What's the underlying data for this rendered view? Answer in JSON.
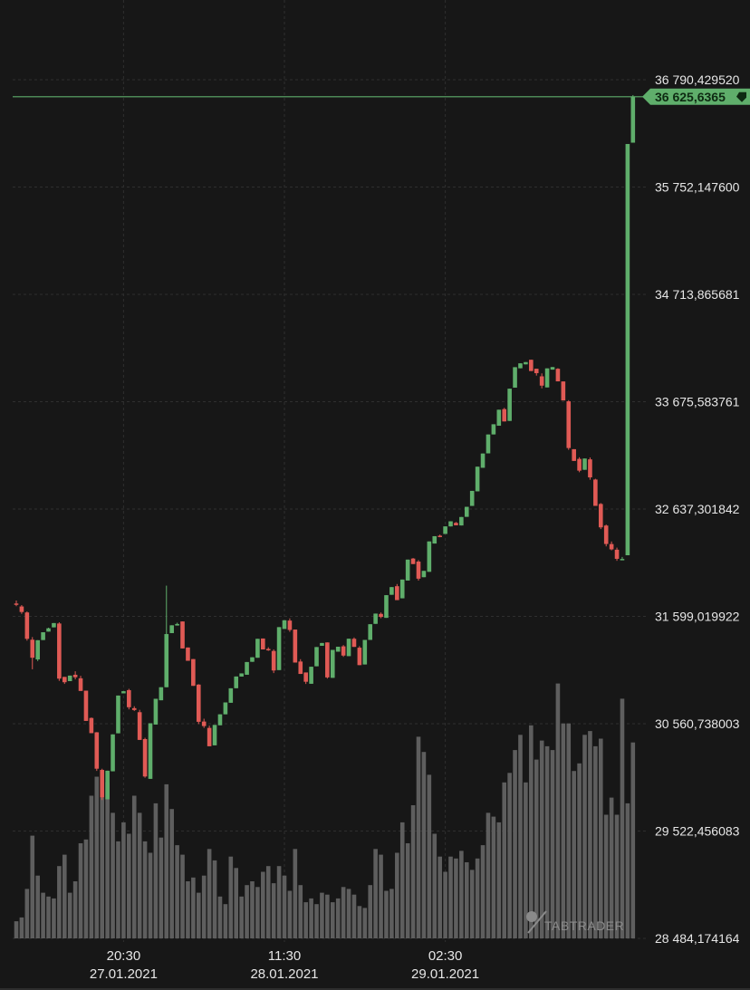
{
  "watermark": "TABTRADER",
  "current_price_label": "36 625,6365",
  "colors": {
    "up": "#5fae6b",
    "down": "#e05a55",
    "volume": "#5e5e5e",
    "price_line": "#5fae6b",
    "background": "#171717"
  },
  "chart_data": {
    "type": "candlestick",
    "title": "",
    "price_axis_ticks": [
      "36 790,429520",
      "35 752,147600",
      "34 713,865681",
      "33 675,583761",
      "32 637,301842",
      "31 599,019922",
      "30 560,738003",
      "29 522,456083",
      "28 484,174164"
    ],
    "price_axis_values": [
      36790.42952,
      35752.1476,
      34713.865681,
      33675.583761,
      32637.301842,
      31599.019922,
      30560.738003,
      29522.456083,
      28484.174164
    ],
    "time_axis": [
      {
        "time": "20:30",
        "date": "27.01.2021",
        "index": 20
      },
      {
        "time": "11:30",
        "date": "28.01.2021",
        "index": 50
      },
      {
        "time": "02:30",
        "date": "29.01.2021",
        "index": 80
      }
    ],
    "ylim": [
      28484.174164,
      36790.42952
    ],
    "current_price": 36625.6365,
    "ohlc": [
      [
        31723.6,
        31721.6,
        31697.1,
        31752.5
      ],
      [
        31694.9,
        31641.3,
        31623.6,
        31708.4
      ],
      [
        31636.9,
        31381.9,
        31364.2,
        31646.9
      ],
      [
        31373.2,
        31198.8,
        31087.3,
        31398.7
      ],
      [
        31182.6,
        31368.6,
        31166.1,
        31363.3
      ],
      [
        31370.0,
        31445.4,
        31457.9,
        31350.6
      ],
      [
        31451.6,
        31483.4,
        31460.2,
        31489.5
      ],
      [
        31492.7,
        31534.3,
        31546.8,
        31514.6
      ],
      [
        31530.2,
        30996.8,
        30975.1,
        31542.2
      ],
      [
        31013.5,
        30962.0,
        30945.7,
        30998.6
      ],
      [
        30972.7,
        31026.2,
        31063.3,
        30987.5
      ],
      [
        31034.3,
        31010.1,
        30989.6,
        31067.8
      ],
      [
        31000.0,
        30877.7,
        30890.6,
        31024.2
      ],
      [
        30880.4,
        30587.8,
        30609.8,
        30874.9
      ],
      [
        30616.2,
        30469.4,
        30479.6,
        30620.8
      ],
      [
        30477.6,
        30125.4,
        30104.2,
        30479.6
      ],
      [
        30113.7,
        29847.2,
        29822.5,
        30125.0
      ],
      [
        29829.4,
        30106.1,
        30125.8,
        29811.7
      ],
      [
        30100.3,
        30457.5,
        30467.6,
        30124.7
      ],
      [
        30467.9,
        30833.1,
        30848.4,
        30481.5
      ],
      [
        30854.3,
        30875.3,
        30892.5,
        30841.1
      ],
      [
        30885.6,
        30720.1,
        30699.2,
        30898.2
      ],
      [
        30710.9,
        30693.5,
        30684.3,
        30729.5
      ],
      [
        30672.2,
        30404.0,
        30426.9,
        30695.0
      ],
      [
        30411.9,
        30050.1,
        30038.2,
        30424.8
      ],
      [
        30027.3,
        30565.1,
        30545.6,
        30035.9
      ],
      [
        30552.4,
        30801.8,
        30781.4,
        30579.3
      ],
      [
        30787.4,
        30913.6,
        30934.0,
        30793.1
      ],
      [
        30913.6,
        31427.8,
        31453.9,
        31896.4
      ],
      [
        31437.1,
        31512.8,
        31497.4,
        31422.1
      ],
      [
        31510.6,
        31525.6,
        31553.9,
        31537.7
      ],
      [
        31549.8,
        31288.7,
        31312.0,
        31533.4
      ],
      [
        31298.0,
        31169.4,
        31184.6,
        31283.5
      ],
      [
        31186.0,
        30926.9,
        30932.8,
        31154.3
      ],
      [
        30939.2,
        30579.2,
        30557.1,
        30942.9
      ],
      [
        30581.5,
        30538.1,
        30520.1,
        30608.9
      ],
      [
        30520.2,
        30342.6,
        30360.7,
        30542.2
      ],
      [
        30351.5,
        30549.1,
        30528.3,
        30359.1
      ],
      [
        30545.6,
        30651.6,
        30664.1,
        30563.7
      ],
      [
        30651.6,
        30766.6,
        30746.4,
        30664.7
      ],
      [
        30763.2,
        30903.4,
        30924.1,
        30773.7
      ],
      [
        30904.0,
        31017.5,
        31036.5,
        30923.1
      ],
      [
        31016.7,
        31047.4,
        31028.9,
        31036.1
      ],
      [
        31034.3,
        31157.4,
        31142.6,
        31052.0
      ],
      [
        31159.4,
        31203.4,
        31191.6,
        31169.5
      ],
      [
        31198.7,
        31382.0,
        31361.3,
        31210.7
      ],
      [
        31385.0,
        31279.3,
        31298.4,
        31373.9
      ],
      [
        31283.9,
        31279.1,
        31265.5,
        31300.1
      ],
      [
        31264.4,
        31075.6,
        31050.5,
        31279.5
      ],
      [
        31079.4,
        31495.0,
        31473.8,
        31077.6
      ],
      [
        31477.0,
        31561.3,
        31574.6,
        31459.1
      ],
      [
        31558.3,
        31467.6,
        31449.6,
        31579.3
      ],
      [
        31471.6,
        31152.3,
        31165.0,
        31455.3
      ],
      [
        31162.3,
        31042.2,
        31061.7,
        31184.9
      ],
      [
        31056.4,
        30966.5,
        30945.1,
        31051.4
      ],
      [
        30947.0,
        31111.9,
        31092.5,
        30960.9
      ],
      [
        31116.2,
        31302.3,
        31283.8,
        31133.1
      ],
      [
        31314.3,
        31341.6,
        31331.4,
        31326.3
      ],
      [
        31346.8,
        31008.8,
        30997.3,
        31347.1
      ],
      [
        31004.3,
        31274.8,
        31256.9,
        30996.7
      ],
      [
        31257.4,
        31305.5,
        31288.5,
        31272.4
      ],
      [
        31309.0,
        31220.0,
        31207.3,
        31321.5
      ],
      [
        31214.3,
        31382.9,
        31400.9,
        31203.8
      ],
      [
        31382.0,
        31303.7,
        31315.6,
        31395.1
      ],
      [
        31295.9,
        31127.4,
        31142.3,
        31311.3
      ],
      [
        31133.7,
        31371.3,
        31355.5,
        31149.3
      ],
      [
        31371.4,
        31523.2,
        31508.3,
        31387.2
      ],
      [
        31526.7,
        31625.9,
        31614.2,
        31545.3
      ],
      [
        31623.0,
        31593.5,
        31581.3,
        31636.5
      ],
      [
        31584.7,
        31804.2,
        31783.8,
        31574.9
      ],
      [
        31807.8,
        31882.2,
        31898.2,
        31788.3
      ],
      [
        31891.0,
        31756.4,
        31782.2,
        31911.9
      ],
      [
        31773.7,
        31955.2,
        31936.0,
        31785.1
      ],
      [
        31945.5,
        32148.2,
        32127.1,
        31963.4
      ],
      [
        32158.3,
        32105.1,
        32125.0,
        32163.3
      ],
      [
        32128.9,
        31963.7,
        31944.6,
        32143.5
      ],
      [
        31978.0,
        32039.4,
        32020.9,
        31993.5
      ],
      [
        32030.0,
        32324.0,
        32307.9,
        32049.3
      ],
      [
        32303.6,
        32374.8,
        32359.2,
        32319.1
      ],
      [
        32379.3,
        32372.9,
        32364.5,
        32390.0
      ],
      [
        32396.5,
        32469.6,
        32447.0,
        32382.7
      ],
      [
        32469.2,
        32518.6,
        32501.4,
        32484.6
      ],
      [
        32503.8,
        32480.0,
        32490.7,
        32512.1
      ],
      [
        32478.5,
        32560.4,
        32546.6,
        32492.2
      ],
      [
        32561.9,
        32658.8,
        32649.6,
        32570.5
      ],
      [
        32667.6,
        32813.1,
        32795.2,
        32680.5
      ],
      [
        32808.5,
        33047.0,
        33031.6,
        32826.7
      ],
      [
        33036.3,
        33174.5,
        33189.8,
        33020.5
      ],
      [
        33175.9,
        33358.6,
        33381.8,
        33185.6
      ],
      [
        33359.0,
        33457.5,
        33481.3,
        33365.8
      ],
      [
        33443.2,
        33598.1,
        33613.9,
        33426.7
      ],
      [
        33603.8,
        33484.6,
        33502.9,
        33616.0
      ],
      [
        33489.7,
        33801.5,
        33829.4,
        33476.3
      ],
      [
        33811.7,
        34009.4,
        33988.9,
        33818.7
      ],
      [
        33998.9,
        34046.9,
        34026.2,
        34018.9
      ],
      [
        34036.8,
        34058.9,
        34038.1,
        34051.4
      ],
      [
        34081.3,
        33972.3,
        33991.4,
        34072.6
      ],
      [
        33994.5,
        33951.7,
        33928.2,
        33989.0
      ],
      [
        33921.0,
        33830.9,
        33804.5,
        33949.5
      ],
      [
        33813.9,
        33998.0,
        34014.0,
        33835.7
      ],
      [
        33985.8,
        34010.6,
        33996.7,
        34007.3
      ],
      [
        33994.1,
        33872.4,
        33892.9,
        33999.7
      ],
      [
        33871.5,
        33687.9,
        33702.8,
        33853.5
      ],
      [
        33679.5,
        33227.6,
        33210.1,
        33690.7
      ],
      [
        33216.4,
        33102.7,
        33120.3,
        33214.5
      ],
      [
        33122.4,
        33008.6,
        32993.3,
        33138.0
      ],
      [
        33016.7,
        33126.0,
        33112.8,
        33027.8
      ],
      [
        33117.9,
        32943.5,
        32920.8,
        33136.1
      ],
      [
        32922.8,
        32667.9,
        32682.4,
        32930.0
      ],
      [
        32686.4,
        32460.2,
        32443.7,
        32695.1
      ],
      [
        32477.6,
        32299.3,
        32276.1,
        32487.0
      ],
      [
        32298.6,
        32247.3,
        32237.7,
        32323.3
      ],
      [
        32243.9,
        32155.7,
        32136.4,
        32264.0
      ],
      [
        32151.2,
        32154.4,
        32170.7,
        32173.9
      ],
      [
        32190.3,
        36168.6,
        36179.0,
        34150.1
      ],
      [
        36181.3,
        36625.6,
        36905.4,
        36641.8
      ]
    ],
    "volume": [
      9,
      11,
      26,
      54,
      33,
      24,
      22,
      21,
      38,
      44,
      24,
      30,
      50,
      52,
      75,
      85,
      74,
      82,
      66,
      51,
      61,
      55,
      75,
      66,
      51,
      45,
      71,
      53,
      81,
      68,
      49,
      44,
      30,
      32,
      24,
      33,
      47,
      41,
      22,
      18,
      43,
      37,
      22,
      28,
      30,
      27,
      35,
      38,
      29,
      38,
      33,
      25,
      47,
      28,
      19,
      21,
      18,
      24,
      23,
      19,
      21,
      27,
      26,
      23,
      17,
      16,
      28,
      47,
      44,
      25,
      26,
      45,
      61,
      50,
      70,
      106,
      98,
      86,
      55,
      43,
      35,
      43,
      42,
      46,
      40,
      36,
      42,
      49,
      66,
      64,
      61,
      82,
      87,
      99,
      107,
      82,
      112,
      94,
      104,
      101,
      99,
      134,
      113,
      113,
      88,
      92,
      107,
      109,
      101,
      105,
      65,
      74,
      65,
      126,
      71,
      103
    ]
  }
}
